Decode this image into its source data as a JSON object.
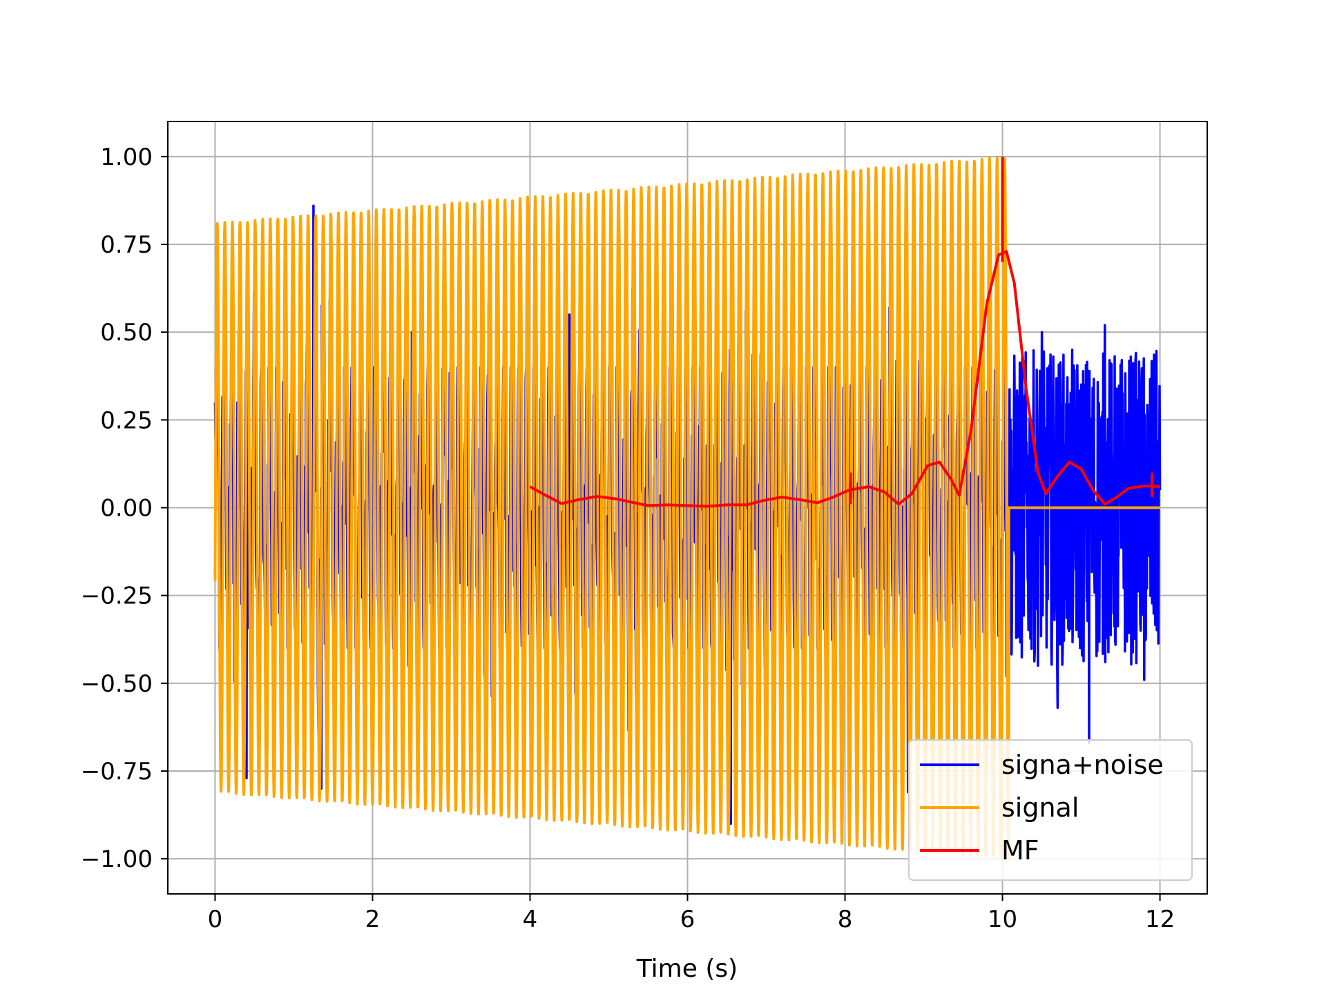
{
  "chart_data": {
    "type": "line",
    "xlabel": "Time (s)",
    "ylabel": "",
    "title": "",
    "xlim": [
      -0.6,
      12.6
    ],
    "ylim": [
      -1.1,
      1.1
    ],
    "xticks": [
      0,
      2,
      4,
      6,
      8,
      10,
      12
    ],
    "xtick_labels": [
      "0",
      "2",
      "4",
      "6",
      "8",
      "10",
      "12"
    ],
    "yticks": [
      -1.0,
      -0.75,
      -0.5,
      -0.25,
      0.0,
      0.25,
      0.5,
      0.75,
      1.0
    ],
    "ytick_labels": [
      "−1.00",
      "−0.75",
      "−0.50",
      "−0.25",
      "0.00",
      "0.25",
      "0.50",
      "0.75",
      "1.00"
    ],
    "grid": true,
    "legend_position": "lower-right",
    "series": [
      {
        "name": "signa+noise",
        "color": "#0000ff",
        "description_type": "noisy oscillation",
        "t_start": 0,
        "t_end": 12,
        "envelope_points": [
          [
            0.0,
            0.3
          ],
          [
            0.3,
            0.5
          ],
          [
            0.4,
            -0.77
          ],
          [
            1.25,
            0.86
          ],
          [
            1.35,
            -0.8
          ],
          [
            2.5,
            0.5
          ],
          [
            3.5,
            0.5
          ],
          [
            4.5,
            0.55
          ],
          [
            5.3,
            0.62
          ],
          [
            6.55,
            1.0
          ],
          [
            6.55,
            -0.9
          ],
          [
            6.85,
            0.79
          ],
          [
            8.5,
            0.6
          ],
          [
            8.8,
            -0.81
          ],
          [
            10.05,
            -0.48
          ],
          [
            10.5,
            0.5
          ],
          [
            10.7,
            -0.57
          ],
          [
            11.1,
            -0.67
          ],
          [
            11.3,
            0.52
          ],
          [
            11.8,
            -0.49
          ],
          [
            12.0,
            0.05
          ]
        ]
      },
      {
        "name": "signal",
        "color": "#ffa500",
        "description_type": "oscillation with linearly growing amplitude, zero after t=10.08",
        "t_start": 0,
        "t_end": 12,
        "amplitude_at_start": 0.81,
        "amplitude_at_end": 1.0,
        "amplitude_end_time": 10.08,
        "cycles_per_second": 10.4,
        "after_end_value": 0.0
      },
      {
        "name": "MF",
        "color": "#ff0000",
        "description_type": "matched filter output",
        "points": [
          [
            4.0,
            0.06
          ],
          [
            4.2,
            0.035
          ],
          [
            4.4,
            0.012
          ],
          [
            4.6,
            0.022
          ],
          [
            4.85,
            0.032
          ],
          [
            5.1,
            0.025
          ],
          [
            5.35,
            0.013
          ],
          [
            5.5,
            0.006
          ],
          [
            5.75,
            0.008
          ],
          [
            6.0,
            0.006
          ],
          [
            6.25,
            0.004
          ],
          [
            6.5,
            0.008
          ],
          [
            6.75,
            0.008
          ],
          [
            6.95,
            0.02
          ],
          [
            7.2,
            0.03
          ],
          [
            7.45,
            0.022
          ],
          [
            7.65,
            0.014
          ],
          [
            7.85,
            0.03
          ],
          [
            8.05,
            0.05
          ],
          [
            8.3,
            0.06
          ],
          [
            8.5,
            0.045
          ],
          [
            8.68,
            0.01
          ],
          [
            8.85,
            0.04
          ],
          [
            9.05,
            0.12
          ],
          [
            9.2,
            0.13
          ],
          [
            9.35,
            0.08
          ],
          [
            9.45,
            0.035
          ],
          [
            9.6,
            0.22
          ],
          [
            9.8,
            0.58
          ],
          [
            9.95,
            0.72
          ],
          [
            10.05,
            0.73
          ],
          [
            10.15,
            0.64
          ],
          [
            10.3,
            0.34
          ],
          [
            10.45,
            0.1
          ],
          [
            10.55,
            0.04
          ],
          [
            10.7,
            0.09
          ],
          [
            10.85,
            0.13
          ],
          [
            11.0,
            0.11
          ],
          [
            11.15,
            0.05
          ],
          [
            11.3,
            0.01
          ],
          [
            11.45,
            0.03
          ],
          [
            11.6,
            0.055
          ],
          [
            11.8,
            0.062
          ],
          [
            12.0,
            0.06
          ]
        ],
        "spikes": [
          [
            8.07,
            0.01,
            0.1
          ],
          [
            10.0,
            0.7,
            1.0
          ],
          [
            11.9,
            0.03,
            0.1
          ]
        ]
      }
    ]
  }
}
